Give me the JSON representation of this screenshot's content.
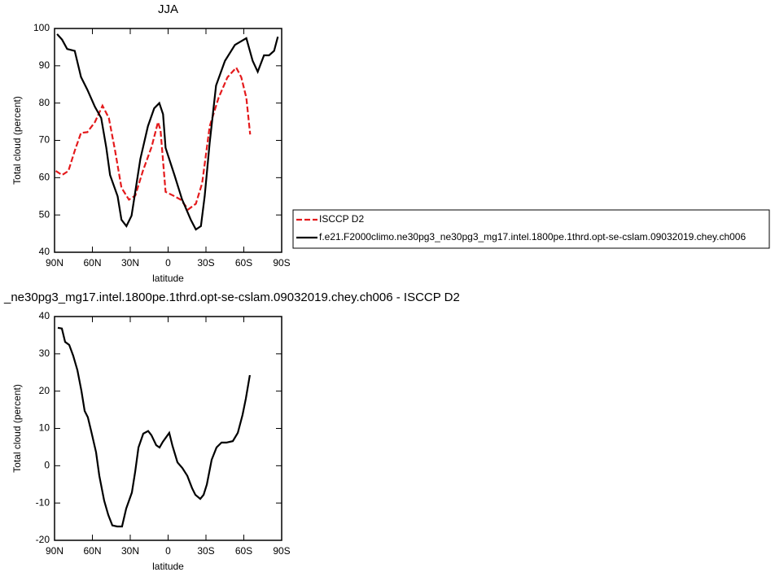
{
  "chart_data": [
    {
      "type": "line",
      "title": "JJA",
      "x_label": "latitude",
      "y_label": "Total cloud (percent)",
      "xlim": [
        90,
        -90
      ],
      "xticks": [
        {
          "value": 90,
          "label": "90N"
        },
        {
          "value": 60,
          "label": "60N"
        },
        {
          "value": 30,
          "label": "30N"
        },
        0,
        {
          "value": -30,
          "label": "30S"
        },
        {
          "value": -60,
          "label": "60S"
        },
        {
          "value": -90,
          "label": "90S"
        }
      ],
      "ylim": [
        40,
        100
      ],
      "yticks": [
        40,
        50,
        60,
        70,
        80,
        90,
        100
      ],
      "series": [
        {
          "name": "ISCCP D2",
          "color": "#e41a1c",
          "line_style": "dashed",
          "x": [
            89,
            84,
            79,
            74,
            69,
            64,
            58,
            52,
            47,
            42,
            37,
            31,
            26,
            20,
            13,
            8,
            6,
            2,
            -4,
            -10,
            -16,
            -22,
            -27,
            -33,
            -40,
            -47,
            -54,
            -58,
            -62,
            -65
          ],
          "values": [
            61.8,
            60.7,
            61.8,
            67.2,
            72,
            72.2,
            74.9,
            79.3,
            76,
            67.2,
            57.3,
            54.1,
            55.2,
            61.8,
            68.3,
            74.9,
            72.7,
            56.2,
            55.2,
            54.1,
            51.5,
            53,
            58.5,
            73.8,
            81.4,
            86.9,
            89.5,
            86.9,
            81.4,
            71.6
          ]
        },
        {
          "name": "f.e21.F2000climo.ne30pg3_ne30pg3_mg17.intel.1800pe.1thrd.opt-se-cslam.09032019.chey.ch006",
          "color": "#000000",
          "line_style": "solid",
          "x": [
            88,
            84,
            80,
            74,
            69,
            64,
            58,
            53,
            49,
            46,
            40,
            37,
            33,
            29,
            22,
            16,
            11,
            7,
            4,
            2,
            -5,
            -11,
            -18,
            -22,
            -26,
            -29,
            -33,
            -38,
            -45,
            -53,
            -62,
            -67,
            -71,
            -76,
            -80,
            -84,
            -87
          ],
          "values": [
            98.5,
            97,
            94.5,
            94,
            87,
            83.6,
            79,
            76,
            68,
            60.7,
            55,
            48.7,
            47,
            49.8,
            65,
            73.8,
            78.6,
            80,
            77,
            68,
            60.7,
            54.2,
            48.7,
            46.1,
            47,
            55,
            69.4,
            84.7,
            91.3,
            95.6,
            97.4,
            91.3,
            88.4,
            92.8,
            92.8,
            94,
            97.8
          ]
        }
      ]
    },
    {
      "type": "line",
      "title": "_ne30pg3_mg17.intel.1800pe.1thrd.opt-se-cslam.09032019.chey.ch006 - ISCCP D2",
      "x_label": "latitude",
      "y_label": "Total cloud (percent)",
      "xlim": [
        90,
        -90
      ],
      "xticks": [
        {
          "value": 90,
          "label": "90N"
        },
        {
          "value": 60,
          "label": "60N"
        },
        {
          "value": 30,
          "label": "30N"
        },
        0,
        {
          "value": -30,
          "label": "30S"
        },
        {
          "value": -60,
          "label": "60S"
        },
        {
          "value": -90,
          "label": "90S"
        }
      ],
      "ylim": [
        -20,
        40
      ],
      "yticks": [
        -20,
        -10,
        0,
        10,
        20,
        30,
        40
      ],
      "series": [
        {
          "color": "#000000",
          "line_style": "solid",
          "x": [
            87.4,
            84.2,
            81.6,
            78.4,
            75.2,
            71.9,
            68.7,
            66.1,
            63.6,
            61,
            57.1,
            54.5,
            50.7,
            47.4,
            44.2,
            40.3,
            36.5,
            33.2,
            28.7,
            26.1,
            23.5,
            19.7,
            15.8,
            13.2,
            9.4,
            6.8,
            4.2,
            -0.9,
            -3.5,
            -7.4,
            -11.3,
            -15.2,
            -19,
            -21.6,
            -25.5,
            -28.1,
            -30.7,
            -34.5,
            -38.4,
            -42.3,
            -46.1,
            -51.3,
            -55.2,
            -59,
            -61.6,
            -64.8
          ],
          "values": [
            37,
            36.8,
            33.2,
            32.4,
            29.5,
            25.6,
            20.1,
            14.7,
            13,
            9.3,
            3.6,
            -2.7,
            -9.3,
            -13.2,
            -16,
            -16.3,
            -16.3,
            -11.5,
            -7.2,
            -1.7,
            4.9,
            8.6,
            9.3,
            8.2,
            5.5,
            4.9,
            6.4,
            8.8,
            5.3,
            0.9,
            -0.6,
            -2.7,
            -6,
            -7.8,
            -8.9,
            -7.8,
            -5,
            1.6,
            4.9,
            6.2,
            6.2,
            6.6,
            8.8,
            13.6,
            18,
            24.3
          ]
        }
      ]
    }
  ]
}
